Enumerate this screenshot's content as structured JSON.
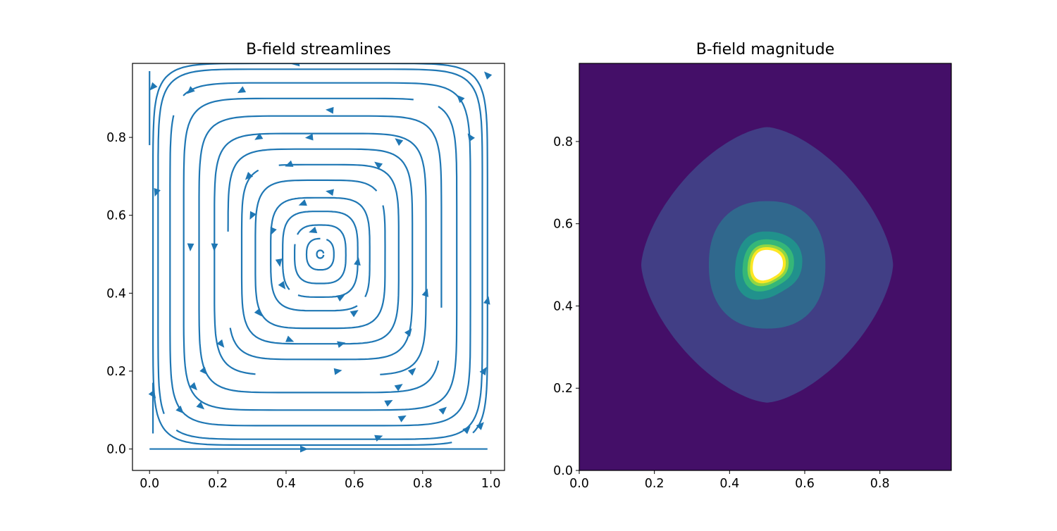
{
  "chart_data": [
    {
      "type": "streamplot",
      "title": "B-field streamlines",
      "xlabel": "",
      "ylabel": "",
      "xlim": [
        -0.05,
        1.04
      ],
      "ylim": [
        -0.055,
        0.99
      ],
      "xticks": [
        0.0,
        0.2,
        0.4,
        0.6,
        0.8,
        1.0
      ],
      "xtick_labels": [
        "0.0",
        "0.2",
        "0.4",
        "0.6",
        "0.8",
        "1.0"
      ],
      "yticks": [
        0.0,
        0.2,
        0.4,
        0.6,
        0.8
      ],
      "ytick_labels": [
        "0.0",
        "0.2",
        "0.4",
        "0.6",
        "0.8"
      ],
      "grid": false,
      "line_color": "#1f77b4",
      "field": {
        "description_center": [
          0.5,
          0.5
        ],
        "circulation": "counterclockwise",
        "loop_half_widths": [
          0.01,
          0.04,
          0.075,
          0.11,
          0.145,
          0.19,
          0.23,
          0.27,
          0.31,
          0.355,
          0.4,
          0.44,
          0.475,
          0.49
        ],
        "gap_fraction": 0.06,
        "arrow_positions": [
          [
            0.43,
            0.99
          ],
          [
            0.53,
            0.87
          ],
          [
            0.47,
            0.8
          ],
          [
            0.45,
            0.63
          ],
          [
            0.48,
            0.56
          ],
          [
            0.41,
            0.73
          ],
          [
            0.32,
            0.8
          ],
          [
            0.29,
            0.7
          ],
          [
            0.3,
            0.6
          ],
          [
            0.36,
            0.56
          ],
          [
            0.12,
            0.52
          ],
          [
            0.19,
            0.52
          ],
          [
            0.02,
            0.66
          ],
          [
            0.01,
            0.93
          ],
          [
            0.12,
            0.92
          ],
          [
            0.27,
            0.92
          ],
          [
            0.67,
            0.73
          ],
          [
            0.73,
            0.79
          ],
          [
            0.38,
            0.48
          ],
          [
            0.39,
            0.42
          ],
          [
            0.32,
            0.35
          ],
          [
            0.41,
            0.28
          ],
          [
            0.21,
            0.27
          ],
          [
            0.16,
            0.2
          ],
          [
            0.13,
            0.16
          ],
          [
            0.09,
            0.1
          ],
          [
            0.15,
            0.11
          ],
          [
            0.01,
            0.14
          ],
          [
            0.45,
            0.0
          ],
          [
            0.67,
            0.03
          ],
          [
            0.56,
            0.27
          ],
          [
            0.6,
            0.35
          ],
          [
            0.61,
            0.48
          ],
          [
            0.56,
            0.39
          ],
          [
            0.76,
            0.3
          ],
          [
            0.81,
            0.4
          ],
          [
            0.77,
            0.2
          ],
          [
            0.73,
            0.16
          ],
          [
            0.7,
            0.12
          ],
          [
            0.74,
            0.08
          ],
          [
            0.86,
            0.1
          ],
          [
            0.93,
            0.05
          ],
          [
            0.97,
            0.06
          ],
          [
            0.98,
            0.2
          ],
          [
            0.99,
            0.38
          ],
          [
            0.94,
            0.8
          ],
          [
            0.91,
            0.9
          ],
          [
            0.99,
            0.96
          ],
          [
            0.55,
            0.2
          ],
          [
            0.53,
            0.66
          ]
        ]
      }
    },
    {
      "type": "contourf",
      "title": "B-field magnitude",
      "xlabel": "",
      "ylabel": "",
      "xlim": [
        0.0,
        0.99
      ],
      "ylim": [
        0.0,
        0.99
      ],
      "xticks": [
        0.0,
        0.2,
        0.4,
        0.6,
        0.8
      ],
      "xtick_labels": [
        "0.0",
        "0.2",
        "0.4",
        "0.6",
        "0.8"
      ],
      "yticks": [
        0.0,
        0.2,
        0.4,
        0.6,
        0.8
      ],
      "ytick_labels": [
        "0.0",
        "0.2",
        "0.4",
        "0.6",
        "0.8"
      ],
      "grid": false,
      "colormap": "viridis",
      "center": [
        0.5,
        0.5
      ],
      "levels": [
        {
          "color": "#440f68",
          "shape": "background"
        },
        {
          "color": "#413e85",
          "half_width": 0.335,
          "p": 1.55
        },
        {
          "color": "#30688d",
          "half_width": 0.155,
          "p": 2.3
        },
        {
          "color": "#21918c",
          "half_width": 0.085,
          "p": 2.2
        },
        {
          "color": "#35b778",
          "half_width": 0.065,
          "p": 2.2
        },
        {
          "color": "#90d643",
          "half_width": 0.052,
          "p": 2.2
        },
        {
          "color": "#fde724",
          "half_width": 0.045,
          "p": 2.2
        },
        {
          "color": "#ffffff",
          "half_width": 0.038,
          "p": 2.2
        }
      ]
    }
  ]
}
